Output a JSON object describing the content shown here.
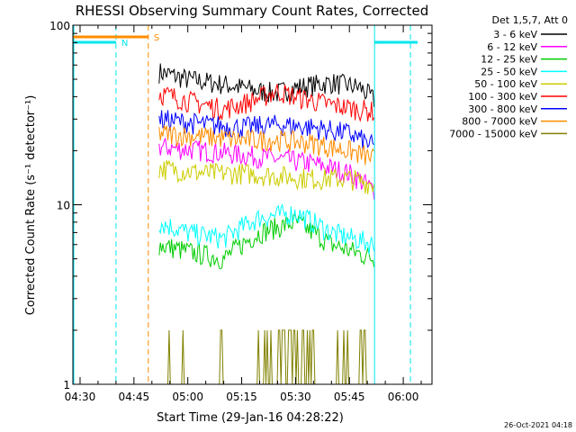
{
  "chart_data": {
    "type": "line",
    "title": "RHESSI Observing Summary Count Rates, Corrected",
    "xlabel": "Start Time (29-Jan-16 04:28:22)",
    "ylabel": "Corrected Count Rate (s⁻¹ detector⁻¹)",
    "yscale": "log",
    "ylim": [
      1,
      100
    ],
    "xlim": [
      "04:28",
      "06:08"
    ],
    "x_ticks": [
      "04:30",
      "04:45",
      "05:00",
      "05:15",
      "05:30",
      "05:45",
      "06:00"
    ],
    "y_ticks": [
      "1",
      "10",
      "100"
    ],
    "legend_title": "Det 1,5,7, Att 0",
    "legend_placement": "right",
    "timestamp": "26-Oct-2021 04:18",
    "markers": [
      {
        "label": "N",
        "color": "#00e5ee"
      },
      {
        "label": "S",
        "color": "#ff8c00"
      }
    ],
    "series": [
      {
        "name": "3 - 6 keV",
        "color": "#000000",
        "x": [
          "04:52",
          "05:00",
          "05:10",
          "05:20",
          "05:25",
          "05:30",
          "05:40",
          "05:48",
          "05:52"
        ],
        "y": [
          55,
          50,
          47,
          43,
          42,
          45,
          48,
          45,
          38
        ]
      },
      {
        "name": "6 - 12 keV",
        "color": "#ff00ff",
        "x": [
          "04:52",
          "05:05",
          "05:15",
          "05:25",
          "05:35",
          "05:45",
          "05:52"
        ],
        "y": [
          21,
          20,
          19,
          18,
          17,
          15,
          12
        ]
      },
      {
        "name": "12 - 25 keV",
        "color": "#00cc00",
        "x": [
          "04:52",
          "05:00",
          "05:10",
          "05:20",
          "05:30",
          "05:40",
          "05:52"
        ],
        "y": [
          6,
          5.5,
          5,
          7,
          8,
          6,
          5
        ]
      },
      {
        "name": "25 - 50 keV",
        "color": "#00ffff",
        "x": [
          "04:52",
          "05:00",
          "05:10",
          "05:20",
          "05:30",
          "05:40",
          "05:52"
        ],
        "y": [
          8,
          7,
          6.5,
          8.5,
          9,
          7,
          6
        ]
      },
      {
        "name": "50 - 100 keV",
        "color": "#cccc00",
        "x": [
          "04:52",
          "05:05",
          "05:15",
          "05:25",
          "05:35",
          "05:45",
          "05:52"
        ],
        "y": [
          16,
          15,
          15,
          14.5,
          14,
          14,
          13
        ]
      },
      {
        "name": "100 - 300 keV",
        "color": "#ff0000",
        "x": [
          "04:52",
          "05:00",
          "05:10",
          "05:18",
          "05:25",
          "05:30",
          "05:40",
          "05:48",
          "05:52"
        ],
        "y": [
          42,
          38,
          34,
          38,
          43,
          40,
          36,
          34,
          33
        ]
      },
      {
        "name": "300 - 800 keV",
        "color": "#0000ff",
        "x": [
          "04:52",
          "05:05",
          "05:15",
          "05:25",
          "05:35",
          "05:45",
          "05:52"
        ],
        "y": [
          30,
          28,
          27,
          28,
          27,
          25,
          21
        ]
      },
      {
        "name": "800 - 7000 keV",
        "color": "#ff8c00",
        "x": [
          "04:52",
          "05:05",
          "05:15",
          "05:25",
          "05:35",
          "05:45",
          "05:52"
        ],
        "y": [
          25,
          24,
          23,
          23,
          22,
          20,
          18
        ]
      },
      {
        "name": "7000 - 15000 keV",
        "color": "#808000",
        "x": [
          "04:52",
          "05:00",
          "05:10",
          "05:20",
          "05:30",
          "05:40",
          "05:52"
        ],
        "y": [
          1.5,
          1.2,
          1.1,
          1.8,
          1.6,
          1.1,
          1
        ]
      }
    ]
  }
}
